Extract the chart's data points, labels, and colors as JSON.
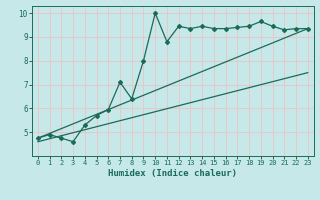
{
  "xlabel": "Humidex (Indice chaleur)",
  "ylabel": "",
  "background_color": "#c6e8e8",
  "grid_color": "#e8c8c8",
  "line_color": "#1a6b5a",
  "xlim": [
    -0.5,
    23.5
  ],
  "ylim": [
    4,
    10.3
  ],
  "xticks": [
    0,
    1,
    2,
    3,
    4,
    5,
    6,
    7,
    8,
    9,
    10,
    11,
    12,
    13,
    14,
    15,
    16,
    17,
    18,
    19,
    20,
    21,
    22,
    23
  ],
  "yticks": [
    5,
    6,
    7,
    8,
    9,
    10
  ],
  "series1_x": [
    0,
    1,
    2,
    3,
    4,
    5,
    6,
    7,
    8,
    9,
    10,
    11,
    12,
    13,
    14,
    15,
    16,
    17,
    18,
    19,
    20,
    21,
    22,
    23
  ],
  "series1_y": [
    4.75,
    4.9,
    4.75,
    4.6,
    5.3,
    5.7,
    5.95,
    7.1,
    6.4,
    8.0,
    10.0,
    8.8,
    9.45,
    9.35,
    9.45,
    9.35,
    9.35,
    9.4,
    9.45,
    9.65,
    9.45,
    9.3,
    9.35,
    9.35
  ],
  "line1_x": [
    0,
    23
  ],
  "line1_y": [
    4.75,
    9.35
  ],
  "line2_x": [
    0,
    23
  ],
  "line2_y": [
    4.6,
    7.5
  ]
}
